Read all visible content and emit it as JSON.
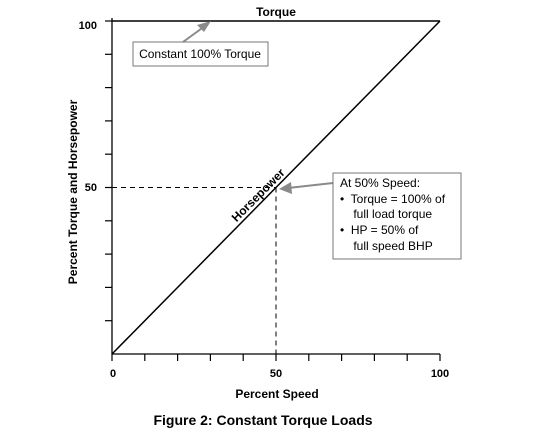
{
  "chart_data": {
    "type": "line",
    "xlabel": "Percent Speed",
    "ylabel": "Percent Torque and Horsepower",
    "xlim": [
      0,
      100
    ],
    "ylim": [
      0,
      100
    ],
    "x_tick_labels": [
      "0",
      "50",
      "100"
    ],
    "y_tick_labels": [
      "100",
      "50"
    ],
    "x_minor_ticks": [
      0,
      10,
      20,
      30,
      40,
      50,
      60,
      70,
      80,
      90,
      100
    ],
    "y_minor_ticks": [
      10,
      20,
      30,
      40,
      50,
      60,
      70,
      80,
      90
    ],
    "grid": false,
    "series": [
      {
        "name": "Torque",
        "x": [
          0,
          100
        ],
        "y": [
          100,
          100
        ]
      },
      {
        "name": "Horsepower",
        "x": [
          0,
          100
        ],
        "y": [
          0,
          100
        ]
      }
    ],
    "reference_lines": {
      "x": 50,
      "y": 50
    },
    "annotations": {
      "torque_box": "Constant 100% Torque",
      "speed_box": {
        "title": "At 50% Speed:",
        "lines": [
          "•  Torque = 100% of",
          "    full load torque",
          "•  HP = 50% of",
          "    full speed BHP"
        ]
      }
    },
    "caption": "Figure 2: Constant Torque Loads"
  },
  "colors": {
    "ink": "#000000",
    "arrow": "#8a8a8a",
    "box_border": "#777777"
  }
}
